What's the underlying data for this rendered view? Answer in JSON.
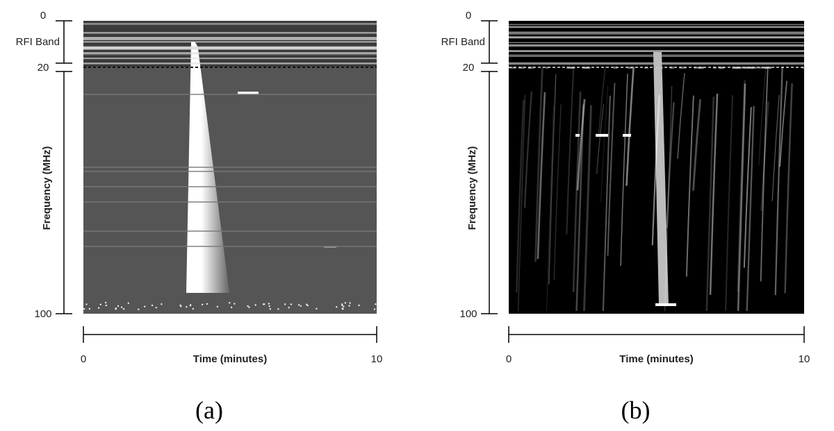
{
  "panels": [
    {
      "caption": "(a)",
      "y_axis": {
        "title": "Frequency (MHz)",
        "band_label": "RFI Band",
        "ticks": [
          "0",
          "20",
          "100"
        ]
      },
      "x_axis": {
        "title": "Time (minutes)",
        "ticks": [
          "0",
          "10"
        ]
      }
    },
    {
      "caption": "(b)",
      "y_axis": {
        "title": "Frequency (MHz)",
        "band_label": "RFI Band",
        "ticks": [
          "0",
          "20",
          "100"
        ]
      },
      "x_axis": {
        "title": "Time (minutes)",
        "ticks": [
          "0",
          "10"
        ]
      }
    }
  ]
}
